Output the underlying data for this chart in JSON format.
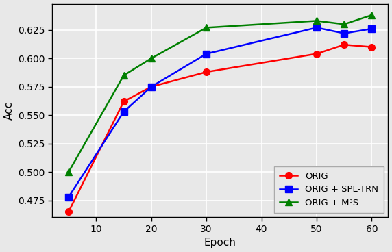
{
  "epochs": [
    5,
    15,
    20,
    30,
    50,
    55,
    60
  ],
  "orig": [
    0.465,
    0.562,
    0.575,
    0.588,
    0.604,
    0.612,
    0.61
  ],
  "orig_spl": [
    0.478,
    0.553,
    0.575,
    0.604,
    0.627,
    0.622,
    0.626
  ],
  "orig_m3s": [
    0.5,
    0.585,
    0.6,
    0.627,
    0.633,
    0.63,
    0.638
  ],
  "orig_color": "#ff0000",
  "spl_color": "#0000ff",
  "m3s_color": "#008000",
  "orig_label": "ORIG",
  "spl_label": "ORIG + SPL-TRN",
  "m3s_label": "ORIG + M³S",
  "xlabel": "Epoch",
  "ylabel": "Acc",
  "xlim": [
    2,
    63
  ],
  "ylim": [
    0.46,
    0.648
  ],
  "xticks": [
    10,
    20,
    30,
    40,
    50,
    60
  ],
  "yticks": [
    0.475,
    0.5,
    0.525,
    0.55,
    0.575,
    0.6,
    0.625
  ],
  "plot_bg_color": "#e8e8e8",
  "fig_bg_color": "#e8e8e8",
  "grid_color": "#ffffff",
  "linewidth": 1.8,
  "markersize": 7,
  "spine_color": "#000000",
  "tick_fontsize": 10,
  "label_fontsize": 11,
  "legend_fontsize": 9.5
}
